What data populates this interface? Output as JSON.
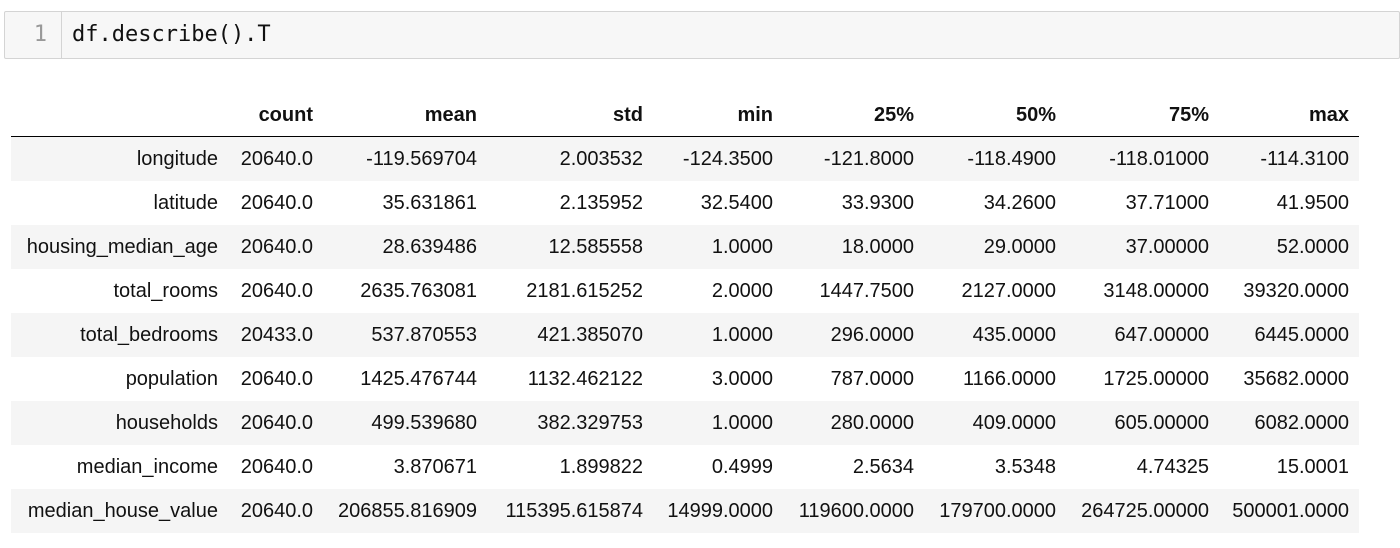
{
  "cell": {
    "line_number": "1",
    "code": "df.describe().T"
  },
  "table": {
    "columns": [
      "count",
      "mean",
      "std",
      "min",
      "25%",
      "50%",
      "75%",
      "max"
    ],
    "rows": [
      {
        "label": "longitude",
        "values": [
          "20640.0",
          "-119.569704",
          "2.003532",
          "-124.3500",
          "-121.8000",
          "-118.4900",
          "-118.01000",
          "-114.3100"
        ]
      },
      {
        "label": "latitude",
        "values": [
          "20640.0",
          "35.631861",
          "2.135952",
          "32.5400",
          "33.9300",
          "34.2600",
          "37.71000",
          "41.9500"
        ]
      },
      {
        "label": "housing_median_age",
        "values": [
          "20640.0",
          "28.639486",
          "12.585558",
          "1.0000",
          "18.0000",
          "29.0000",
          "37.00000",
          "52.0000"
        ]
      },
      {
        "label": "total_rooms",
        "values": [
          "20640.0",
          "2635.763081",
          "2181.615252",
          "2.0000",
          "1447.7500",
          "2127.0000",
          "3148.00000",
          "39320.0000"
        ]
      },
      {
        "label": "total_bedrooms",
        "values": [
          "20433.0",
          "537.870553",
          "421.385070",
          "1.0000",
          "296.0000",
          "435.0000",
          "647.00000",
          "6445.0000"
        ]
      },
      {
        "label": "population",
        "values": [
          "20640.0",
          "1425.476744",
          "1132.462122",
          "3.0000",
          "787.0000",
          "1166.0000",
          "1725.00000",
          "35682.0000"
        ]
      },
      {
        "label": "households",
        "values": [
          "20640.0",
          "499.539680",
          "382.329753",
          "1.0000",
          "280.0000",
          "409.0000",
          "605.00000",
          "6082.0000"
        ]
      },
      {
        "label": "median_income",
        "values": [
          "20640.0",
          "3.870671",
          "1.899822",
          "0.4999",
          "2.5634",
          "3.5348",
          "4.74325",
          "15.0001"
        ]
      },
      {
        "label": "median_house_value",
        "values": [
          "20640.0",
          "206855.816909",
          "115395.615874",
          "14999.0000",
          "119600.0000",
          "179700.0000",
          "264725.00000",
          "500001.0000"
        ]
      }
    ]
  }
}
